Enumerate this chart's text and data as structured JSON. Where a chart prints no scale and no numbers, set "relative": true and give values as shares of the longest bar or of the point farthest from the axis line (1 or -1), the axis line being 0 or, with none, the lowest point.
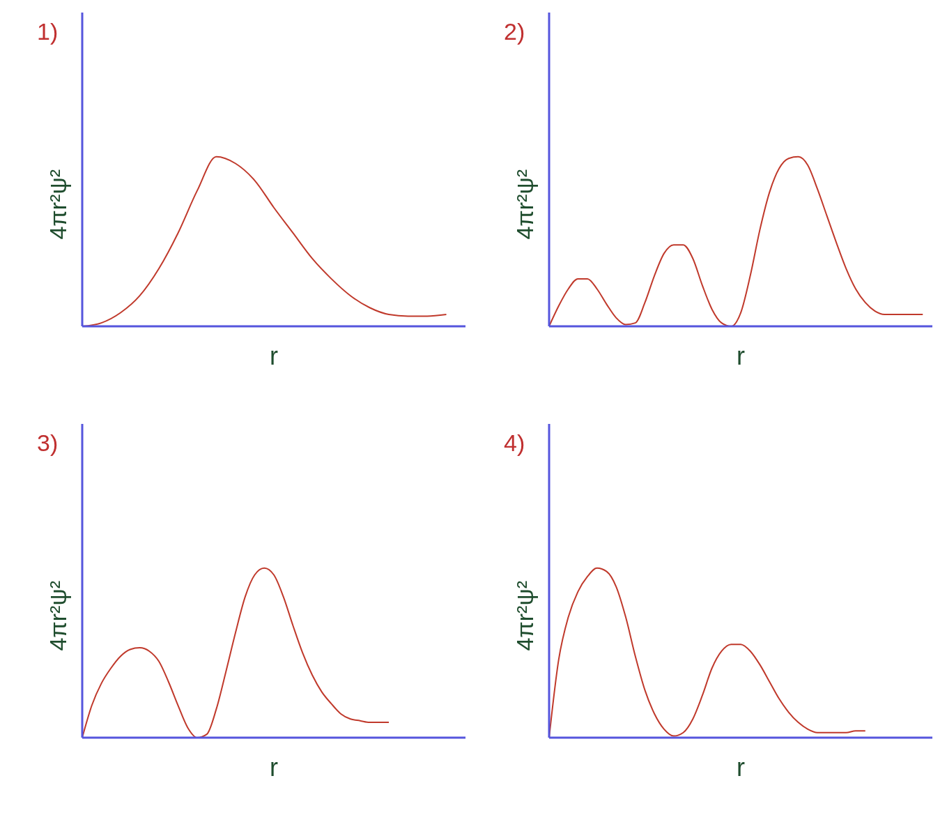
{
  "chart_data": [
    {
      "type": "line",
      "title": "1)",
      "xlabel": "r",
      "ylabel": "4πr²ψ²",
      "relative": true,
      "categories": [
        null,
        null,
        null,
        null,
        null,
        null,
        null,
        null,
        null,
        null,
        null,
        null,
        null,
        null,
        null,
        null,
        null,
        null,
        null,
        null,
        null
      ],
      "series": [
        {
          "color": "#c0392b",
          "values": [
            0,
            0.02,
            0.08,
            0.18,
            0.34,
            0.55,
            0.8,
            1,
            0.96,
            0.86,
            0.7,
            0.55,
            0.4,
            0.28,
            0.18,
            0.11,
            0.07,
            0.06,
            0.06,
            0.07,
            null
          ]
        }
      ]
    },
    {
      "type": "line",
      "title": "2)",
      "xlabel": "r",
      "ylabel": "4πr²ψ²",
      "relative": true,
      "categories": [
        null,
        null,
        null,
        null,
        null,
        null,
        null,
        null,
        null,
        null,
        null,
        null,
        null,
        null,
        null,
        null,
        null,
        null,
        null,
        null,
        null,
        null,
        null,
        null,
        null,
        null,
        null,
        null,
        null,
        null,
        null,
        null,
        null,
        null,
        null,
        null,
        null,
        null,
        null,
        null,
        null
      ],
      "series": [
        {
          "color": "#c0392b",
          "values": [
            0,
            0.12,
            0.22,
            0.28,
            0.28,
            0.22,
            0.13,
            0.05,
            0.01,
            0.02,
            0.14,
            0.3,
            0.43,
            0.48,
            0.48,
            0.4,
            0.24,
            0.1,
            0.02,
            0,
            0.08,
            0.3,
            0.57,
            0.79,
            0.93,
            0.99,
            1,
            0.95,
            0.81,
            0.65,
            0.49,
            0.34,
            0.22,
            0.14,
            0.09,
            0.07,
            0.07,
            0.07,
            0.07,
            0.07,
            null
          ]
        }
      ]
    },
    {
      "type": "line",
      "title": "3)",
      "xlabel": "r",
      "ylabel": "4πr²ψ²",
      "relative": true,
      "categories": [
        null,
        null,
        null,
        null,
        null,
        null,
        null,
        null,
        null,
        null,
        null,
        null,
        null,
        null,
        null,
        null,
        null,
        null,
        null,
        null,
        null,
        null,
        null,
        null,
        null,
        null,
        null,
        null,
        null,
        null,
        null,
        null,
        null,
        null,
        null,
        null,
        null,
        null,
        null,
        null,
        null
      ],
      "series": [
        {
          "color": "#c0392b",
          "values": [
            0,
            0.19,
            0.32,
            0.41,
            0.48,
            0.52,
            0.53,
            0.51,
            0.45,
            0.33,
            0.19,
            0.06,
            0,
            0.02,
            0.17,
            0.39,
            0.62,
            0.83,
            0.96,
            1,
            0.96,
            0.83,
            0.66,
            0.5,
            0.37,
            0.27,
            0.2,
            0.14,
            0.11,
            0.1,
            0.09,
            0.09,
            0.09,
            null,
            null,
            null,
            null,
            null,
            null,
            null,
            null
          ]
        }
      ]
    },
    {
      "type": "line",
      "title": "4)",
      "xlabel": "r",
      "ylabel": "4πr²ψ²",
      "relative": true,
      "categories": [
        null,
        null,
        null,
        null,
        null,
        null,
        null,
        null,
        null,
        null,
        null,
        null,
        null,
        null,
        null,
        null,
        null,
        null,
        null,
        null,
        null,
        null,
        null,
        null,
        null,
        null,
        null,
        null,
        null,
        null,
        null,
        null,
        null,
        null,
        null,
        null,
        null,
        null,
        null,
        null,
        null
      ],
      "series": [
        {
          "color": "#c0392b",
          "values": [
            0,
            0.46,
            0.71,
            0.86,
            0.95,
            1,
            0.98,
            0.89,
            0.71,
            0.48,
            0.28,
            0.14,
            0.05,
            0.01,
            0.03,
            0.11,
            0.25,
            0.41,
            0.51,
            0.55,
            0.55,
            0.51,
            0.43,
            0.33,
            0.23,
            0.15,
            0.09,
            0.05,
            0.03,
            0.03,
            0.03,
            0.03,
            0.04,
            0.04,
            null,
            null,
            null,
            null,
            null,
            null,
            null
          ]
        }
      ]
    }
  ]
}
